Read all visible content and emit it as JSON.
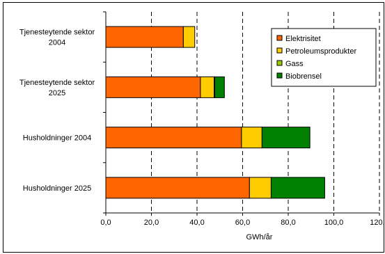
{
  "chart_data": {
    "type": "bar",
    "orientation": "horizontal",
    "stacked": true,
    "categories": [
      [
        "Tjenesteytende sektor",
        "2004"
      ],
      [
        "Tjenesteytende sektor",
        "2025"
      ],
      [
        "Husholdninger 2004"
      ],
      [
        "Husholdninger 2025"
      ]
    ],
    "series": [
      {
        "name": "Elektrisitet",
        "color": "#FF6600",
        "values": [
          34,
          41.5,
          59.5,
          63
        ]
      },
      {
        "name": "Petroleumsprodukter",
        "color": "#FFCC00",
        "values": [
          5,
          6,
          9,
          9.5
        ]
      },
      {
        "name": "Gass",
        "color": "#99CC00",
        "values": [
          0,
          0.3,
          0,
          0
        ]
      },
      {
        "name": "Biobrensel",
        "color": "#008000",
        "values": [
          0,
          4.2,
          21,
          23.5
        ]
      }
    ],
    "xlim": [
      0,
      120
    ],
    "xticks": [
      "0,0",
      "20,0",
      "40,0",
      "60,0",
      "80,0",
      "100,0",
      "120,0"
    ],
    "xlabel": "GWh/år",
    "ylabel": "",
    "title": "",
    "grid": "vertical dashed",
    "legend_position": "top-right"
  }
}
